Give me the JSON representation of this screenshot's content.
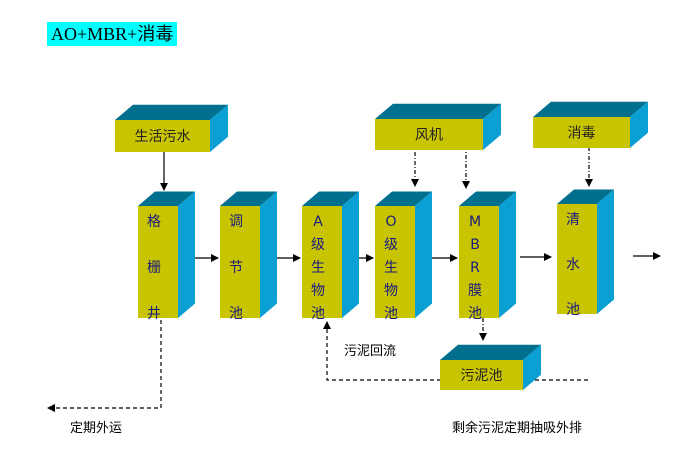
{
  "title": "AO+MBR+消毒",
  "colors": {
    "front": "#c8c400",
    "top": "#00708e",
    "side": "#0aa0d4",
    "text": "#1a1a80"
  },
  "boxes": {
    "sewage": "生活污水",
    "grille": [
      "格",
      "栅",
      "井"
    ],
    "adjust": [
      "调",
      "节",
      "池"
    ],
    "a_tank": [
      "A",
      "级",
      "生",
      "物",
      "池"
    ],
    "o_tank": [
      "O",
      "级",
      "生",
      "物",
      "池"
    ],
    "mbr": [
      "M",
      "B",
      "R",
      "膜",
      "池"
    ],
    "clear": [
      "清",
      "水",
      "池"
    ],
    "blower": "风机",
    "disinfect": "消毒",
    "sludge": "污泥池"
  },
  "labels": {
    "sludge_return": "污泥回流",
    "periodic_out": "定期外运",
    "excess_sludge": "剩余污泥定期抽吸外排"
  }
}
